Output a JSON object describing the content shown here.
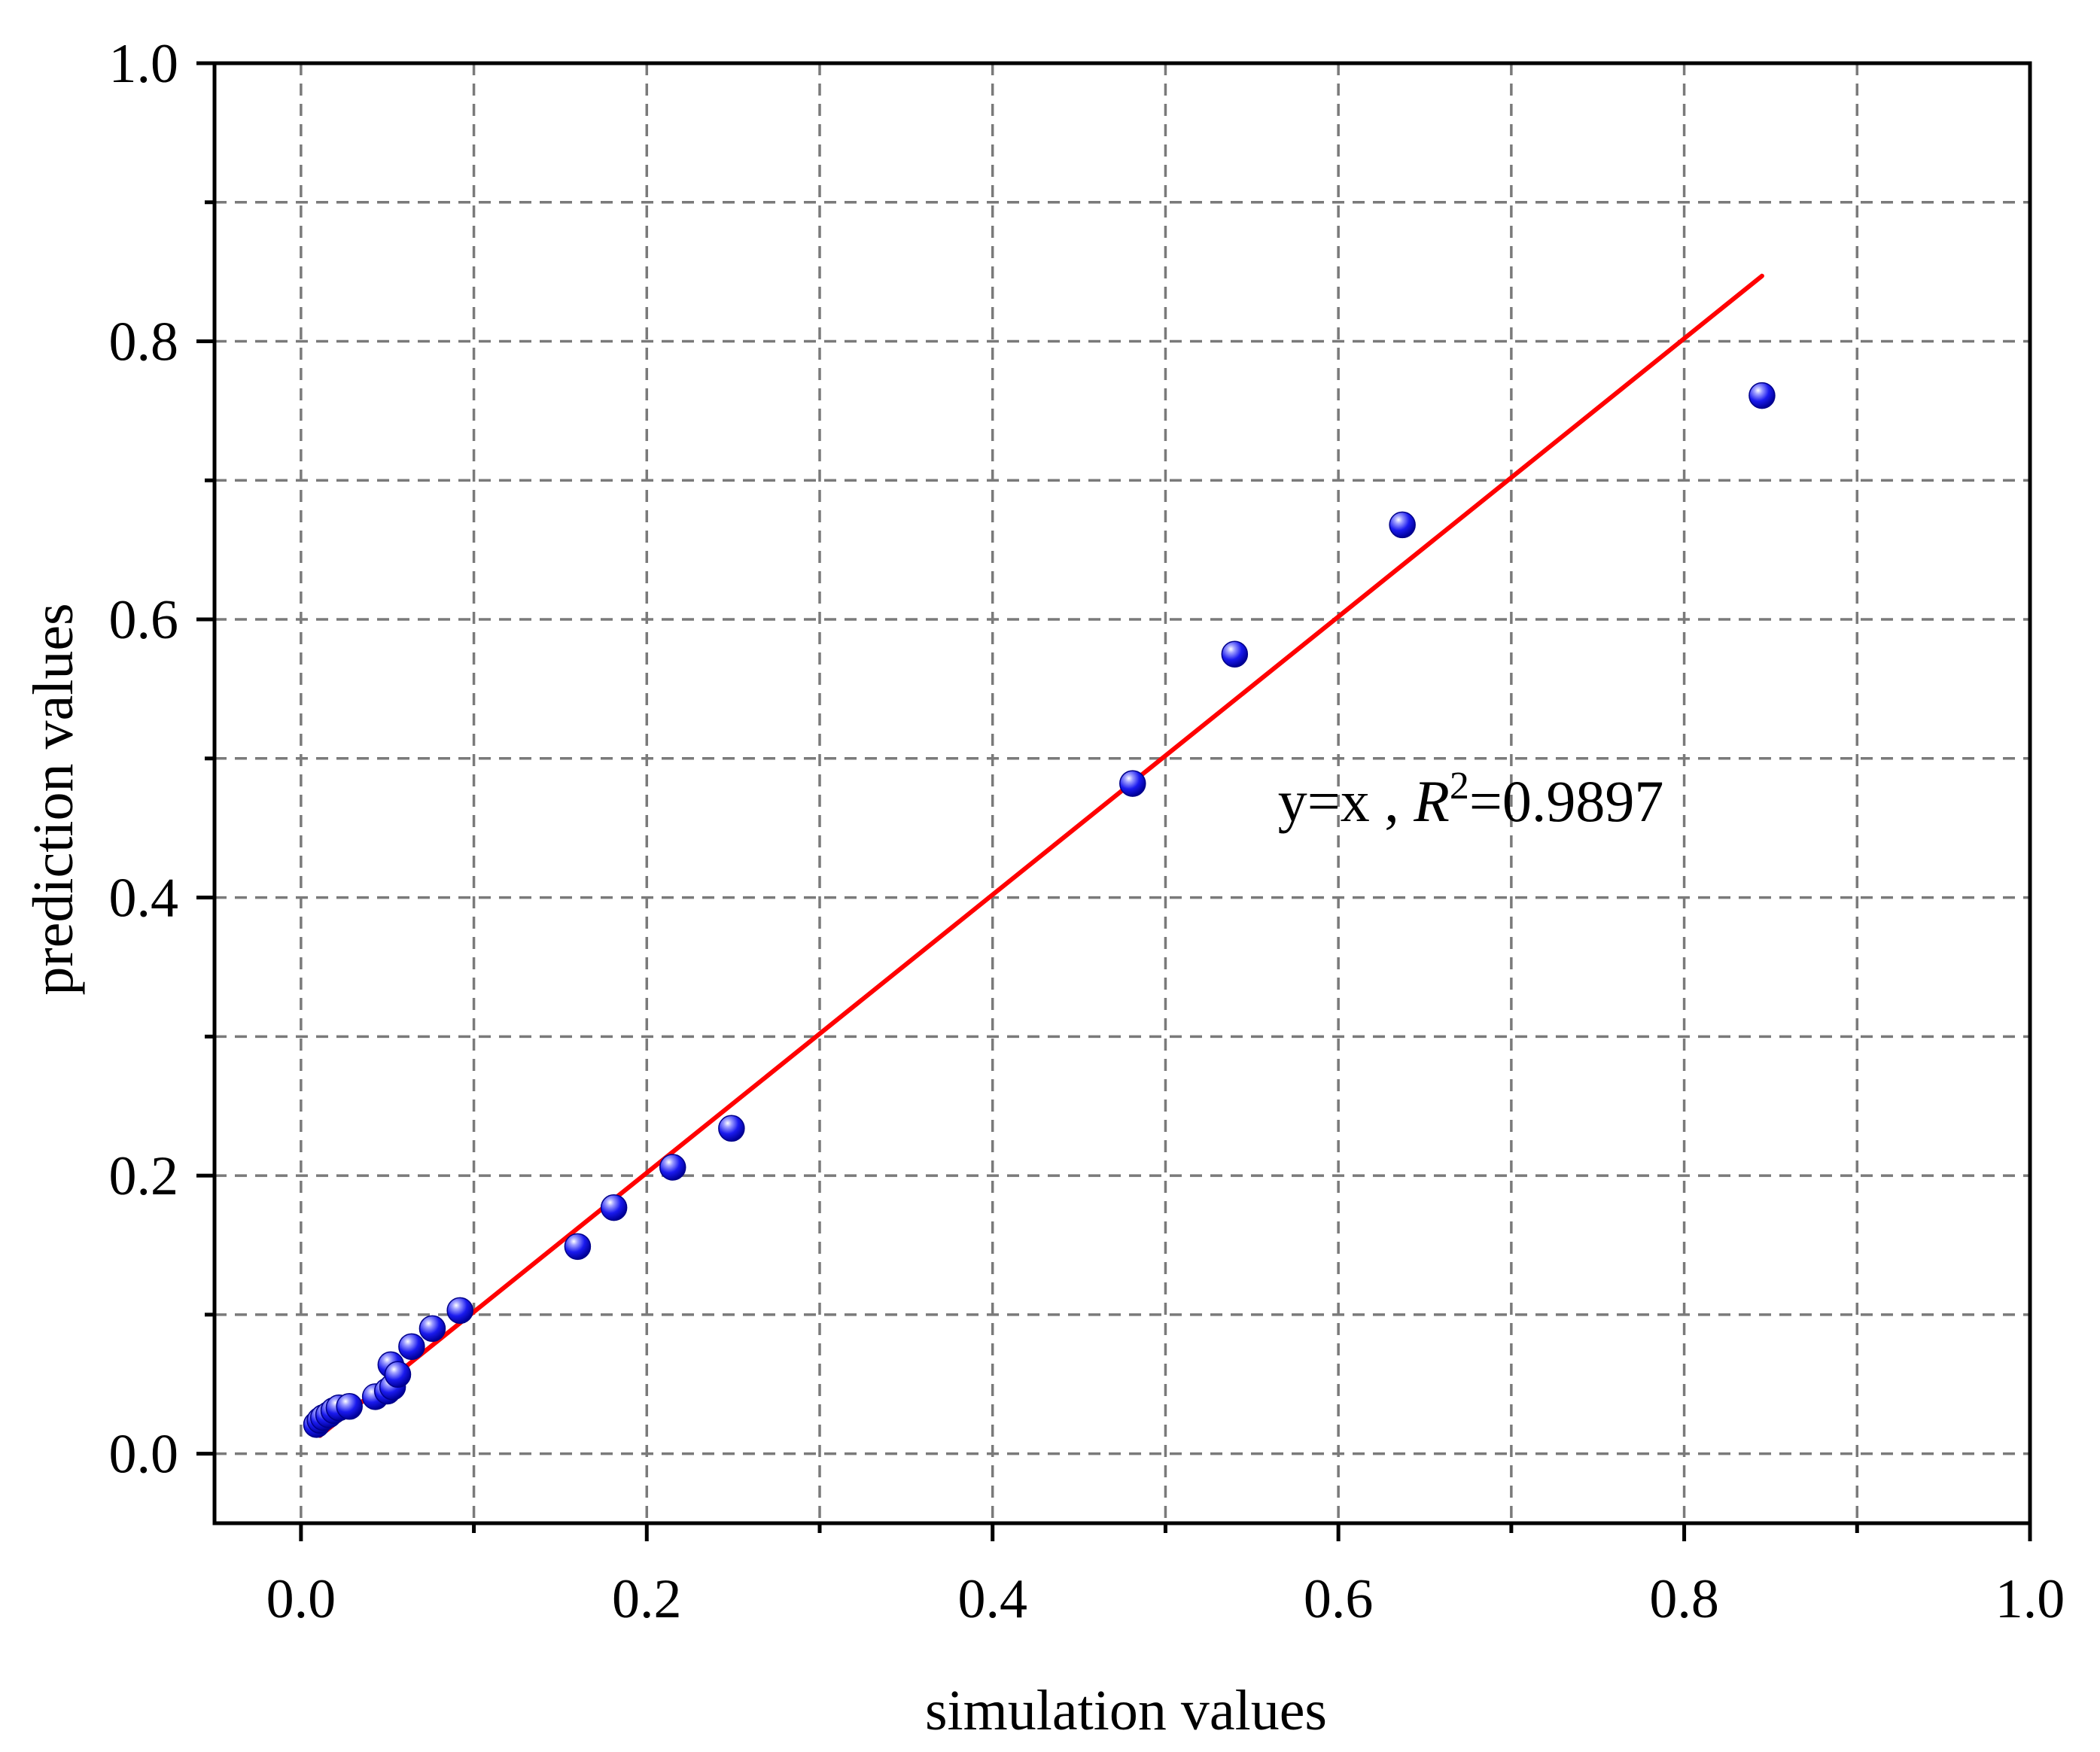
{
  "colors": {
    "point": "#1010e0",
    "fit_line": "#ff0000",
    "grid": "#7a7a7a",
    "axis": "#000000"
  },
  "chart_data": {
    "type": "scatter",
    "title": "",
    "xlabel": "simulation values",
    "ylabel": "prediction values",
    "xlim": [
      -0.05,
      1.0
    ],
    "ylim": [
      -0.05,
      1.0
    ],
    "x_ticks": [
      0.0,
      0.2,
      0.4,
      0.6,
      0.8,
      1.0
    ],
    "x_tick_labels": [
      "0.0",
      "0.2",
      "0.4",
      "0.6",
      "0.8",
      "1.0"
    ],
    "y_ticks": [
      0.0,
      0.2,
      0.4,
      0.6,
      0.8,
      1.0
    ],
    "y_tick_labels": [
      "0.0",
      "0.2",
      "0.4",
      "0.6",
      "0.8",
      "1.0"
    ],
    "x_minor_ticks": [
      0.1,
      0.3,
      0.5,
      0.7,
      0.9
    ],
    "y_minor_ticks": [
      0.1,
      0.3,
      0.5,
      0.7,
      0.9
    ],
    "grid": true,
    "points": {
      "x": [
        0.009,
        0.011,
        0.013,
        0.016,
        0.019,
        0.022,
        0.028,
        0.043,
        0.05,
        0.052,
        0.053,
        0.056,
        0.064,
        0.076,
        0.092,
        0.16,
        0.181,
        0.215,
        0.249,
        0.481,
        0.54,
        0.637,
        0.845
      ],
      "y": [
        0.021,
        0.024,
        0.026,
        0.028,
        0.031,
        0.033,
        0.034,
        0.041,
        0.045,
        0.064,
        0.048,
        0.057,
        0.077,
        0.09,
        0.103,
        0.149,
        0.177,
        0.206,
        0.234,
        0.482,
        0.575,
        0.668,
        0.761
      ]
    },
    "fit_line": {
      "x": [
        0.011,
        0.845
      ],
      "y": [
        0.013,
        0.847
      ]
    },
    "annotation": {
      "prefix": "y=x , ",
      "r_symbol": "R",
      "superscript": "2",
      "value": "=0.9897",
      "x": 0.565,
      "y": 0.455
    }
  }
}
